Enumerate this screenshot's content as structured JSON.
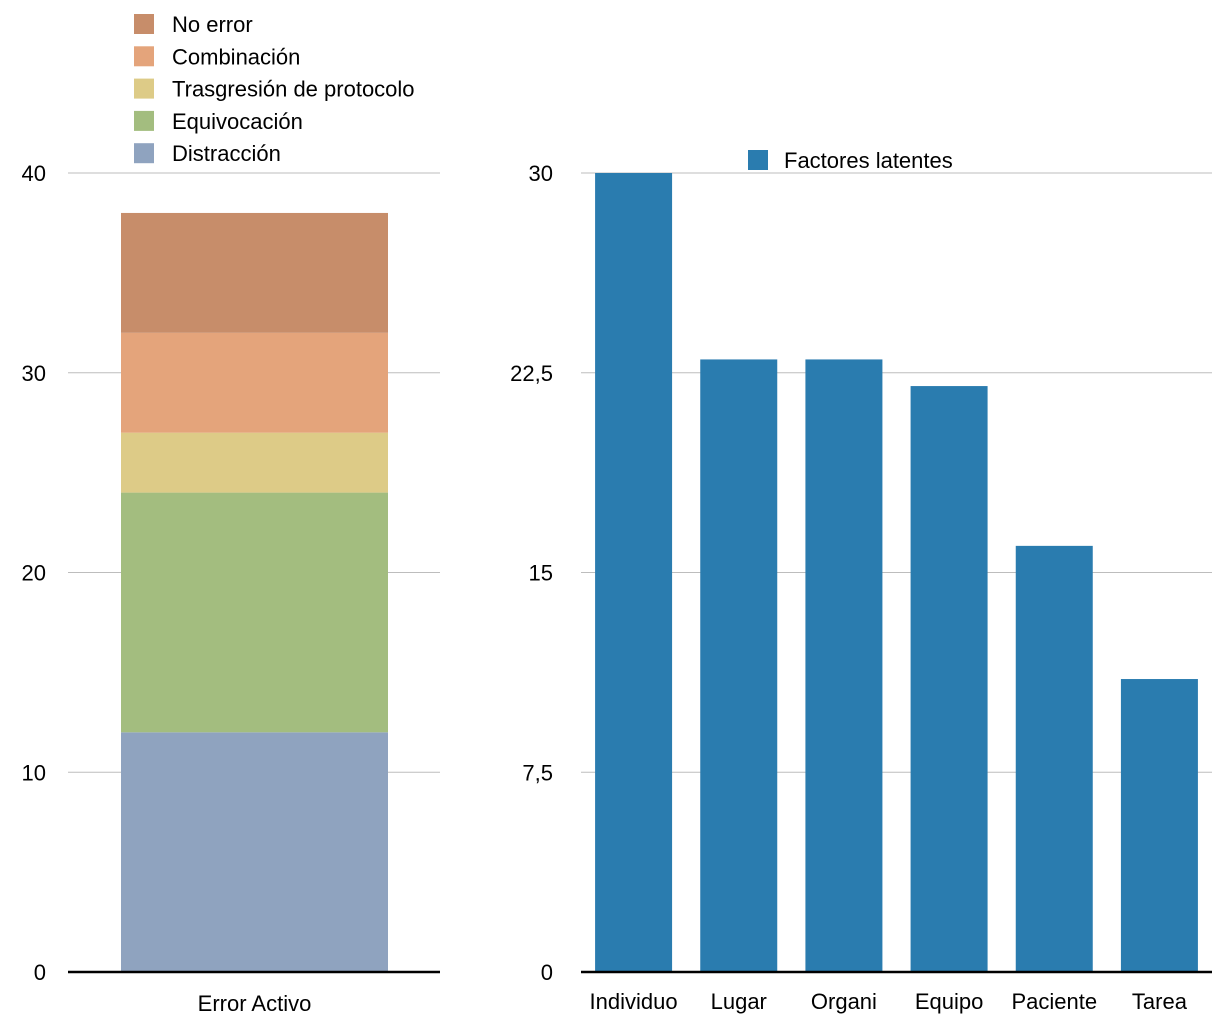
{
  "chart_data": [
    {
      "type": "bar",
      "stacked": true,
      "categories": [
        "Error Activo"
      ],
      "series": [
        {
          "name": "Distracción",
          "values": [
            12
          ],
          "color": "#8fa3bf"
        },
        {
          "name": "Equivocación",
          "values": [
            12
          ],
          "color": "#a3bd7f"
        },
        {
          "name": "Trasgresión de protocolo",
          "values": [
            3
          ],
          "color": "#ddcb87"
        },
        {
          "name": "Combinación",
          "values": [
            5
          ],
          "color": "#e4a47b"
        },
        {
          "name": "No error",
          "values": [
            6
          ],
          "color": "#c78d6a"
        }
      ],
      "legend_order": [
        "No error",
        "Combinación",
        "Trasgresión de protocolo",
        "Equivocación",
        "Distracción"
      ],
      "ylim": [
        0,
        40
      ],
      "yticks": [
        "0",
        "10",
        "20",
        "30",
        "40"
      ],
      "grid": true,
      "legend_position": "top"
    },
    {
      "type": "bar",
      "categories": [
        "Individuo",
        "Lugar",
        "Organi",
        "Equipo",
        "Paciente",
        "Tarea"
      ],
      "series": [
        {
          "name": "Factores latentes",
          "values": [
            30,
            23,
            23,
            22,
            16,
            11
          ],
          "color": "#2a7caf"
        }
      ],
      "ylim": [
        0,
        30
      ],
      "yticks": [
        "0",
        "7,5",
        "15",
        "22,5",
        "30"
      ],
      "grid": true,
      "legend_position": "top"
    }
  ]
}
